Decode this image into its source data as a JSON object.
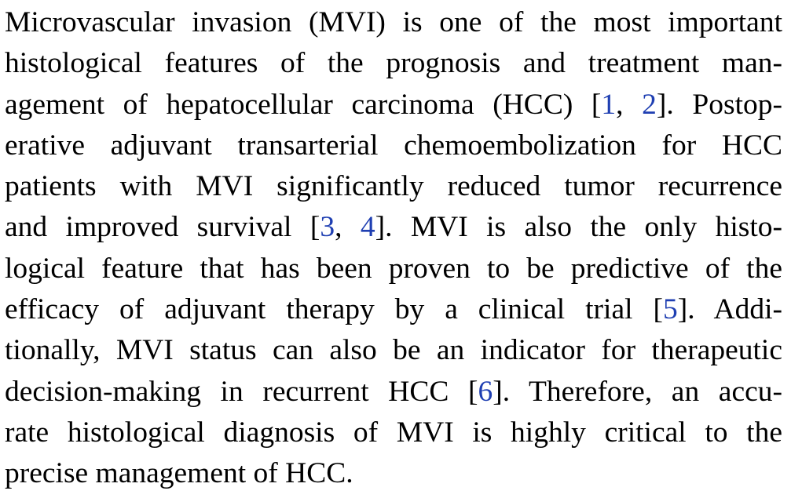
{
  "paragraph": {
    "lines": [
      {
        "segments": [
          {
            "text": "Microvascular invasion (MVI) is one of the most important"
          }
        ]
      },
      {
        "segments": [
          {
            "text": "histological features of the prognosis and treatment man-"
          }
        ]
      },
      {
        "segments": [
          {
            "text": "agement of hepatocellular carcinoma (HCC) ["
          },
          {
            "text": "1",
            "cite": true
          },
          {
            "text": ", "
          },
          {
            "text": "2",
            "cite": true
          },
          {
            "text": "]. Postop-"
          }
        ]
      },
      {
        "segments": [
          {
            "text": "erative adjuvant transarterial chemoembolization for HCC"
          }
        ]
      },
      {
        "segments": [
          {
            "text": "patients with MVI significantly reduced tumor recurrence"
          }
        ]
      },
      {
        "segments": [
          {
            "text": "and improved survival ["
          },
          {
            "text": "3",
            "cite": true
          },
          {
            "text": ", "
          },
          {
            "text": "4",
            "cite": true
          },
          {
            "text": "]. MVI is also the only histo-"
          }
        ]
      },
      {
        "segments": [
          {
            "text": "logical feature that has been proven to be predictive of the"
          }
        ]
      },
      {
        "segments": [
          {
            "text": "efficacy of adjuvant therapy by a clinical trial ["
          },
          {
            "text": "5",
            "cite": true
          },
          {
            "text": "]. Addi-"
          }
        ]
      },
      {
        "segments": [
          {
            "text": "tionally, MVI status can also be an indicator for therapeutic"
          }
        ]
      },
      {
        "segments": [
          {
            "text": "decision-making in recurrent HCC ["
          },
          {
            "text": "6",
            "cite": true
          },
          {
            "text": "]. Therefore, an accu-"
          }
        ]
      },
      {
        "segments": [
          {
            "text": "rate histological diagnosis of MVI is highly critical to the"
          }
        ]
      },
      {
        "segments": [
          {
            "text": "precise management of HCC."
          }
        ]
      }
    ]
  },
  "colors": {
    "text": "#000000",
    "citation_link": "#1f3fb2",
    "background": "#ffffff"
  }
}
